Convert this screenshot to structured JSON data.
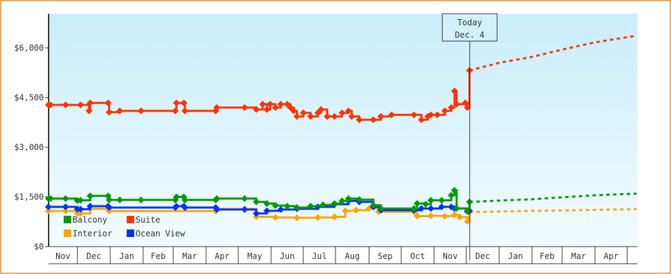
{
  "chart_data": {
    "type": "line",
    "title": "",
    "xlabel": "",
    "ylabel": "",
    "ylim": [
      0,
      7000
    ],
    "y_ticks": [
      "$0",
      "$1,500",
      "$3,000",
      "$4,500",
      "$6,000"
    ],
    "y_tick_values": [
      0,
      1500,
      3000,
      4500,
      6000
    ],
    "x_ticks": [
      "Nov",
      "Dec",
      "Jan",
      "Feb",
      "Mar",
      "Apr",
      "May",
      "Jun",
      "Jul",
      "Aug",
      "Sep",
      "Oct",
      "Nov",
      "Dec",
      "Jan",
      "Feb",
      "Mar",
      "Apr"
    ],
    "grid": false,
    "legend_position": "bottom-left",
    "today_marker": {
      "line1": "Today",
      "line2": "Dec. 4"
    },
    "background": [
      "#c9eefb",
      "#f2fbff"
    ],
    "series": [
      {
        "name": "Suite",
        "color": "#ff3300",
        "actual": [
          [
            "11-04",
            4280
          ],
          [
            "11-06",
            4280
          ],
          [
            "11-20",
            4280
          ],
          [
            "12-04",
            4280
          ],
          [
            "12-12",
            4100
          ],
          [
            "12-13",
            4340
          ],
          [
            "12-30",
            4340
          ],
          [
            "12-31",
            4060
          ],
          [
            "01-10",
            4100
          ],
          [
            "01-30",
            4100
          ],
          [
            "03-03",
            4100
          ],
          [
            "03-04",
            4340
          ],
          [
            "03-11",
            4340
          ],
          [
            "03-12",
            4100
          ],
          [
            "04-10",
            4100
          ],
          [
            "04-11",
            4200
          ],
          [
            "05-07",
            4200
          ],
          [
            "05-18",
            4140
          ],
          [
            "05-24",
            4300
          ],
          [
            "05-28",
            4140
          ],
          [
            "05-31",
            4300
          ],
          [
            "06-05",
            4200
          ],
          [
            "06-10",
            4300
          ],
          [
            "06-16",
            4300
          ],
          [
            "06-19",
            4200
          ],
          [
            "06-22",
            4100
          ],
          [
            "06-25",
            3930
          ],
          [
            "07-01",
            4040
          ],
          [
            "07-08",
            3930
          ],
          [
            "07-15",
            4040
          ],
          [
            "07-18",
            4140
          ],
          [
            "07-24",
            3930
          ],
          [
            "07-31",
            3930
          ],
          [
            "08-07",
            4040
          ],
          [
            "08-13",
            4100
          ],
          [
            "08-16",
            3930
          ],
          [
            "08-23",
            3830
          ],
          [
            "09-05",
            3830
          ],
          [
            "09-12",
            3930
          ],
          [
            "09-22",
            3980
          ],
          [
            "10-13",
            3980
          ],
          [
            "10-20",
            3830
          ],
          [
            "10-26",
            3930
          ],
          [
            "10-29",
            3980
          ],
          [
            "11-04",
            3980
          ],
          [
            "11-11",
            4100
          ],
          [
            "11-17",
            4200
          ],
          [
            "11-20",
            4700
          ],
          [
            "11-22",
            4300
          ],
          [
            "11-30",
            4340
          ],
          [
            "12-02",
            4200
          ],
          [
            "12-04",
            5320
          ]
        ],
        "forecast": [
          [
            "12-04",
            5320
          ],
          [
            "01-01",
            5550
          ],
          [
            "02-01",
            5730
          ],
          [
            "03-01",
            5950
          ],
          [
            "04-01",
            6170
          ],
          [
            "05-10",
            6370
          ]
        ]
      },
      {
        "name": "Balcony",
        "color": "#009900",
        "actual": [
          [
            "11-04",
            1450
          ],
          [
            "11-06",
            1450
          ],
          [
            "11-20",
            1450
          ],
          [
            "12-01",
            1390
          ],
          [
            "12-04",
            1400
          ],
          [
            "12-13",
            1530
          ],
          [
            "12-30",
            1530
          ],
          [
            "12-31",
            1410
          ],
          [
            "01-10",
            1410
          ],
          [
            "01-30",
            1410
          ],
          [
            "03-03",
            1410
          ],
          [
            "03-04",
            1500
          ],
          [
            "03-11",
            1500
          ],
          [
            "03-12",
            1410
          ],
          [
            "04-10",
            1410
          ],
          [
            "04-11",
            1450
          ],
          [
            "05-07",
            1450
          ],
          [
            "05-18",
            1350
          ],
          [
            "05-28",
            1300
          ],
          [
            "06-05",
            1240
          ],
          [
            "06-16",
            1220
          ],
          [
            "06-25",
            1180
          ],
          [
            "07-08",
            1220
          ],
          [
            "07-20",
            1260
          ],
          [
            "07-31",
            1300
          ],
          [
            "08-07",
            1380
          ],
          [
            "08-13",
            1450
          ],
          [
            "08-23",
            1420
          ],
          [
            "09-05",
            1250
          ],
          [
            "09-12",
            1150
          ],
          [
            "10-13",
            1150
          ],
          [
            "10-16",
            1300
          ],
          [
            "10-24",
            1280
          ],
          [
            "10-29",
            1400
          ],
          [
            "11-08",
            1400
          ],
          [
            "11-17",
            1550
          ],
          [
            "11-20",
            1700
          ],
          [
            "11-22",
            1150
          ],
          [
            "12-02",
            1080
          ],
          [
            "12-04",
            1350
          ]
        ],
        "forecast": [
          [
            "12-04",
            1350
          ],
          [
            "01-01",
            1390
          ],
          [
            "02-01",
            1430
          ],
          [
            "03-01",
            1490
          ],
          [
            "04-01",
            1550
          ],
          [
            "05-10",
            1600
          ]
        ]
      },
      {
        "name": "Interior",
        "color": "#ffa500",
        "actual": [
          [
            "11-04",
            1075
          ],
          [
            "11-20",
            1075
          ],
          [
            "12-01",
            1000
          ],
          [
            "12-04",
            1000
          ],
          [
            "12-13",
            1140
          ],
          [
            "12-30",
            1140
          ],
          [
            "12-31",
            1075
          ],
          [
            "04-10",
            1075
          ],
          [
            "04-11",
            1140
          ],
          [
            "05-07",
            1140
          ],
          [
            "05-18",
            900
          ],
          [
            "06-05",
            880
          ],
          [
            "06-25",
            870
          ],
          [
            "07-15",
            880
          ],
          [
            "07-31",
            900
          ],
          [
            "08-10",
            1080
          ],
          [
            "08-20",
            1100
          ],
          [
            "09-01",
            1150
          ],
          [
            "09-10",
            1050
          ],
          [
            "10-13",
            1050
          ],
          [
            "10-16",
            920
          ],
          [
            "10-29",
            930
          ],
          [
            "11-11",
            920
          ],
          [
            "11-20",
            960
          ],
          [
            "11-25",
            890
          ],
          [
            "12-02",
            760
          ],
          [
            "12-04",
            1040
          ]
        ],
        "forecast": [
          [
            "12-04",
            1040
          ],
          [
            "01-01",
            1060
          ],
          [
            "02-01",
            1080
          ],
          [
            "03-01",
            1090
          ],
          [
            "04-01",
            1110
          ],
          [
            "05-10",
            1130
          ]
        ]
      },
      {
        "name": "Ocean View",
        "color": "#0033ff",
        "actual": [
          [
            "11-04",
            1200
          ],
          [
            "11-20",
            1200
          ],
          [
            "12-01",
            1130
          ],
          [
            "12-04",
            1130
          ],
          [
            "12-13",
            1220
          ],
          [
            "12-30",
            1220
          ],
          [
            "12-31",
            1180
          ],
          [
            "03-03",
            1180
          ],
          [
            "03-04",
            1220
          ],
          [
            "03-11",
            1220
          ],
          [
            "03-12",
            1180
          ],
          [
            "04-10",
            1180
          ],
          [
            "04-11",
            1120
          ],
          [
            "05-07",
            1120
          ],
          [
            "05-18",
            1000
          ],
          [
            "05-28",
            1080
          ],
          [
            "06-10",
            1120
          ],
          [
            "06-25",
            1140
          ],
          [
            "07-15",
            1200
          ],
          [
            "07-31",
            1280
          ],
          [
            "08-13",
            1380
          ],
          [
            "08-23",
            1350
          ],
          [
            "09-05",
            1200
          ],
          [
            "09-12",
            1100
          ],
          [
            "10-13",
            1100
          ],
          [
            "10-20",
            1150
          ],
          [
            "10-29",
            1150
          ],
          [
            "11-08",
            1200
          ],
          [
            "11-17",
            1200
          ],
          [
            "11-20",
            1150
          ],
          [
            "12-02",
            1060
          ],
          [
            "12-04",
            1080
          ]
        ],
        "forecast": []
      }
    ],
    "legend": [
      "Balcony",
      "Suite",
      "Interior",
      "Ocean View"
    ]
  }
}
